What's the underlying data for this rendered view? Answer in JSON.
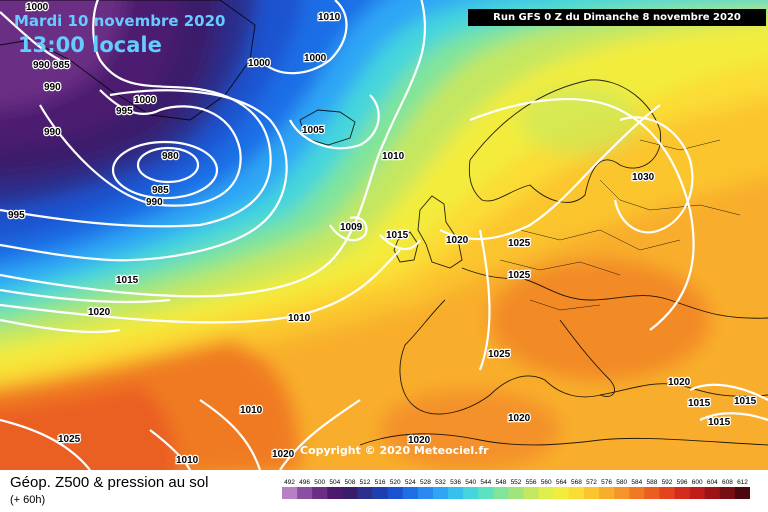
{
  "header": {
    "date": "Mardi 10 novembre 2020",
    "local_time": "13:00 locale",
    "run": "Run GFS 0 Z du Dimanche 8 novembre 2020"
  },
  "footer": {
    "title": "Géop. Z500 & pression au sol",
    "lead_time": "(+ 60h)"
  },
  "copyright": "Copyright © 2020 Meteociel.fr",
  "color_scale": {
    "values": [
      "492",
      "496",
      "500",
      "504",
      "508",
      "512",
      "516",
      "520",
      "524",
      "528",
      "532",
      "536",
      "540",
      "544",
      "548",
      "552",
      "556",
      "560",
      "564",
      "568",
      "572",
      "576",
      "580",
      "584",
      "588",
      "592",
      "596",
      "600",
      "604",
      "608",
      "612"
    ],
    "colors": [
      "#b77fc4",
      "#8a4fa0",
      "#6a2f84",
      "#4b1a6f",
      "#3a1d6a",
      "#2c2f8c",
      "#1f3fae",
      "#1a52cf",
      "#1f6ee6",
      "#2a8af2",
      "#2fa6f5",
      "#36c0ee",
      "#44d6dc",
      "#5de2bf",
      "#80e49a",
      "#a3e37b",
      "#c4e760",
      "#e0ee4c",
      "#f3ec3c",
      "#fbdc34",
      "#fbc52f",
      "#f8ae2c",
      "#f59428",
      "#f07a24",
      "#ea5e21",
      "#e3441e",
      "#d62b1c",
      "#c11b1b",
      "#9e1318",
      "#780d16",
      "#4a070e"
    ]
  },
  "pressure_labels": [
    "1000",
    "1010",
    "1000",
    "1000",
    "990",
    "985",
    "990",
    "995",
    "1000",
    "990",
    "980",
    "985",
    "990",
    "995",
    "1005",
    "1010",
    "1009",
    "1015",
    "1020",
    "1025",
    "1025",
    "1030",
    "1015",
    "1020",
    "1010",
    "1025",
    "1010",
    "1020",
    "1020",
    "1025",
    "1010",
    "1020",
    "1020",
    "1015",
    "1015",
    "1015"
  ]
}
